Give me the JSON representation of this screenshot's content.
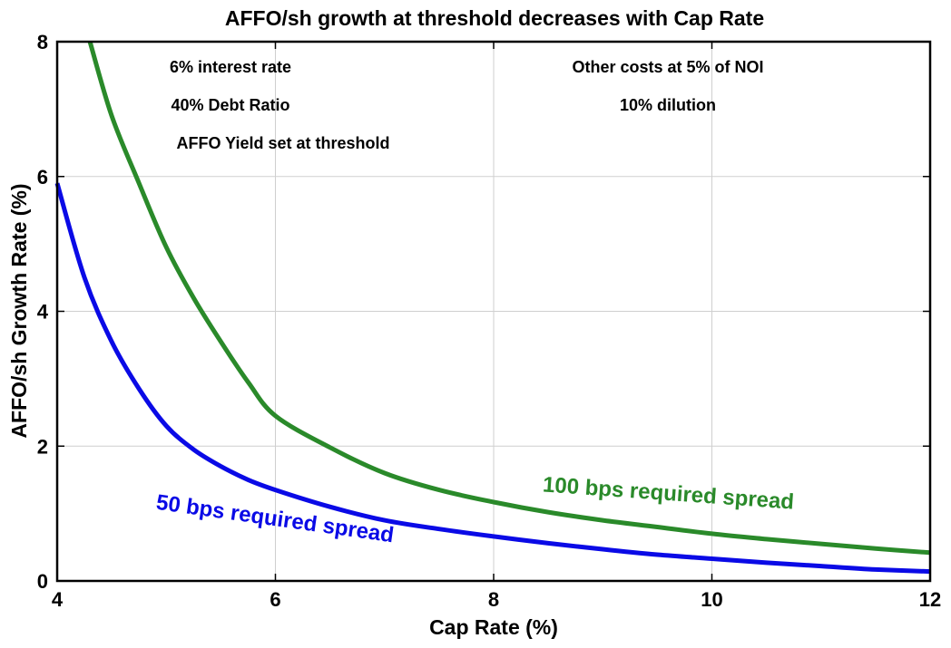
{
  "chart_data": {
    "type": "line",
    "title": "AFFO/sh growth at threshold decreases with Cap Rate",
    "xlabel": "Cap Rate (%)",
    "ylabel": "AFFO/sh Growth Rate (%)",
    "xlim": [
      4,
      12
    ],
    "ylim": [
      0,
      8
    ],
    "x_ticks": [
      4,
      6,
      8,
      10,
      12
    ],
    "y_ticks": [
      0,
      2,
      4,
      6,
      8
    ],
    "grid": true,
    "annotations": [
      "6% interest rate",
      "40% Debt Ratio",
      "AFFO Yield set at threshold",
      "Other costs at 5% of NOI",
      "10% dilution"
    ],
    "series": [
      {
        "name": "100 bps required spread",
        "color": "#2a8a2a",
        "x": [
          4.3,
          4.5,
          4.75,
          5.0,
          5.25,
          5.5,
          5.75,
          6.0,
          6.5,
          7.0,
          7.5,
          8.0,
          8.5,
          9.0,
          9.5,
          10.0,
          10.5,
          11.0,
          11.5,
          12.0
        ],
        "y": [
          8.0,
          6.9,
          5.9,
          4.95,
          4.2,
          3.55,
          2.95,
          2.45,
          1.98,
          1.6,
          1.35,
          1.17,
          1.02,
          0.9,
          0.8,
          0.7,
          0.62,
          0.55,
          0.48,
          0.42
        ]
      },
      {
        "name": "50 bps required spread",
        "color": "#0a0ae6",
        "x": [
          4.0,
          4.25,
          4.5,
          4.75,
          5.0,
          5.25,
          5.5,
          5.75,
          6.0,
          6.5,
          7.0,
          7.5,
          8.0,
          8.5,
          9.0,
          9.5,
          10.0,
          10.5,
          11.0,
          11.5,
          12.0
        ],
        "y": [
          5.9,
          4.5,
          3.55,
          2.85,
          2.3,
          1.95,
          1.7,
          1.5,
          1.35,
          1.1,
          0.9,
          0.77,
          0.66,
          0.56,
          0.47,
          0.39,
          0.33,
          0.27,
          0.22,
          0.17,
          0.14
        ]
      }
    ]
  }
}
